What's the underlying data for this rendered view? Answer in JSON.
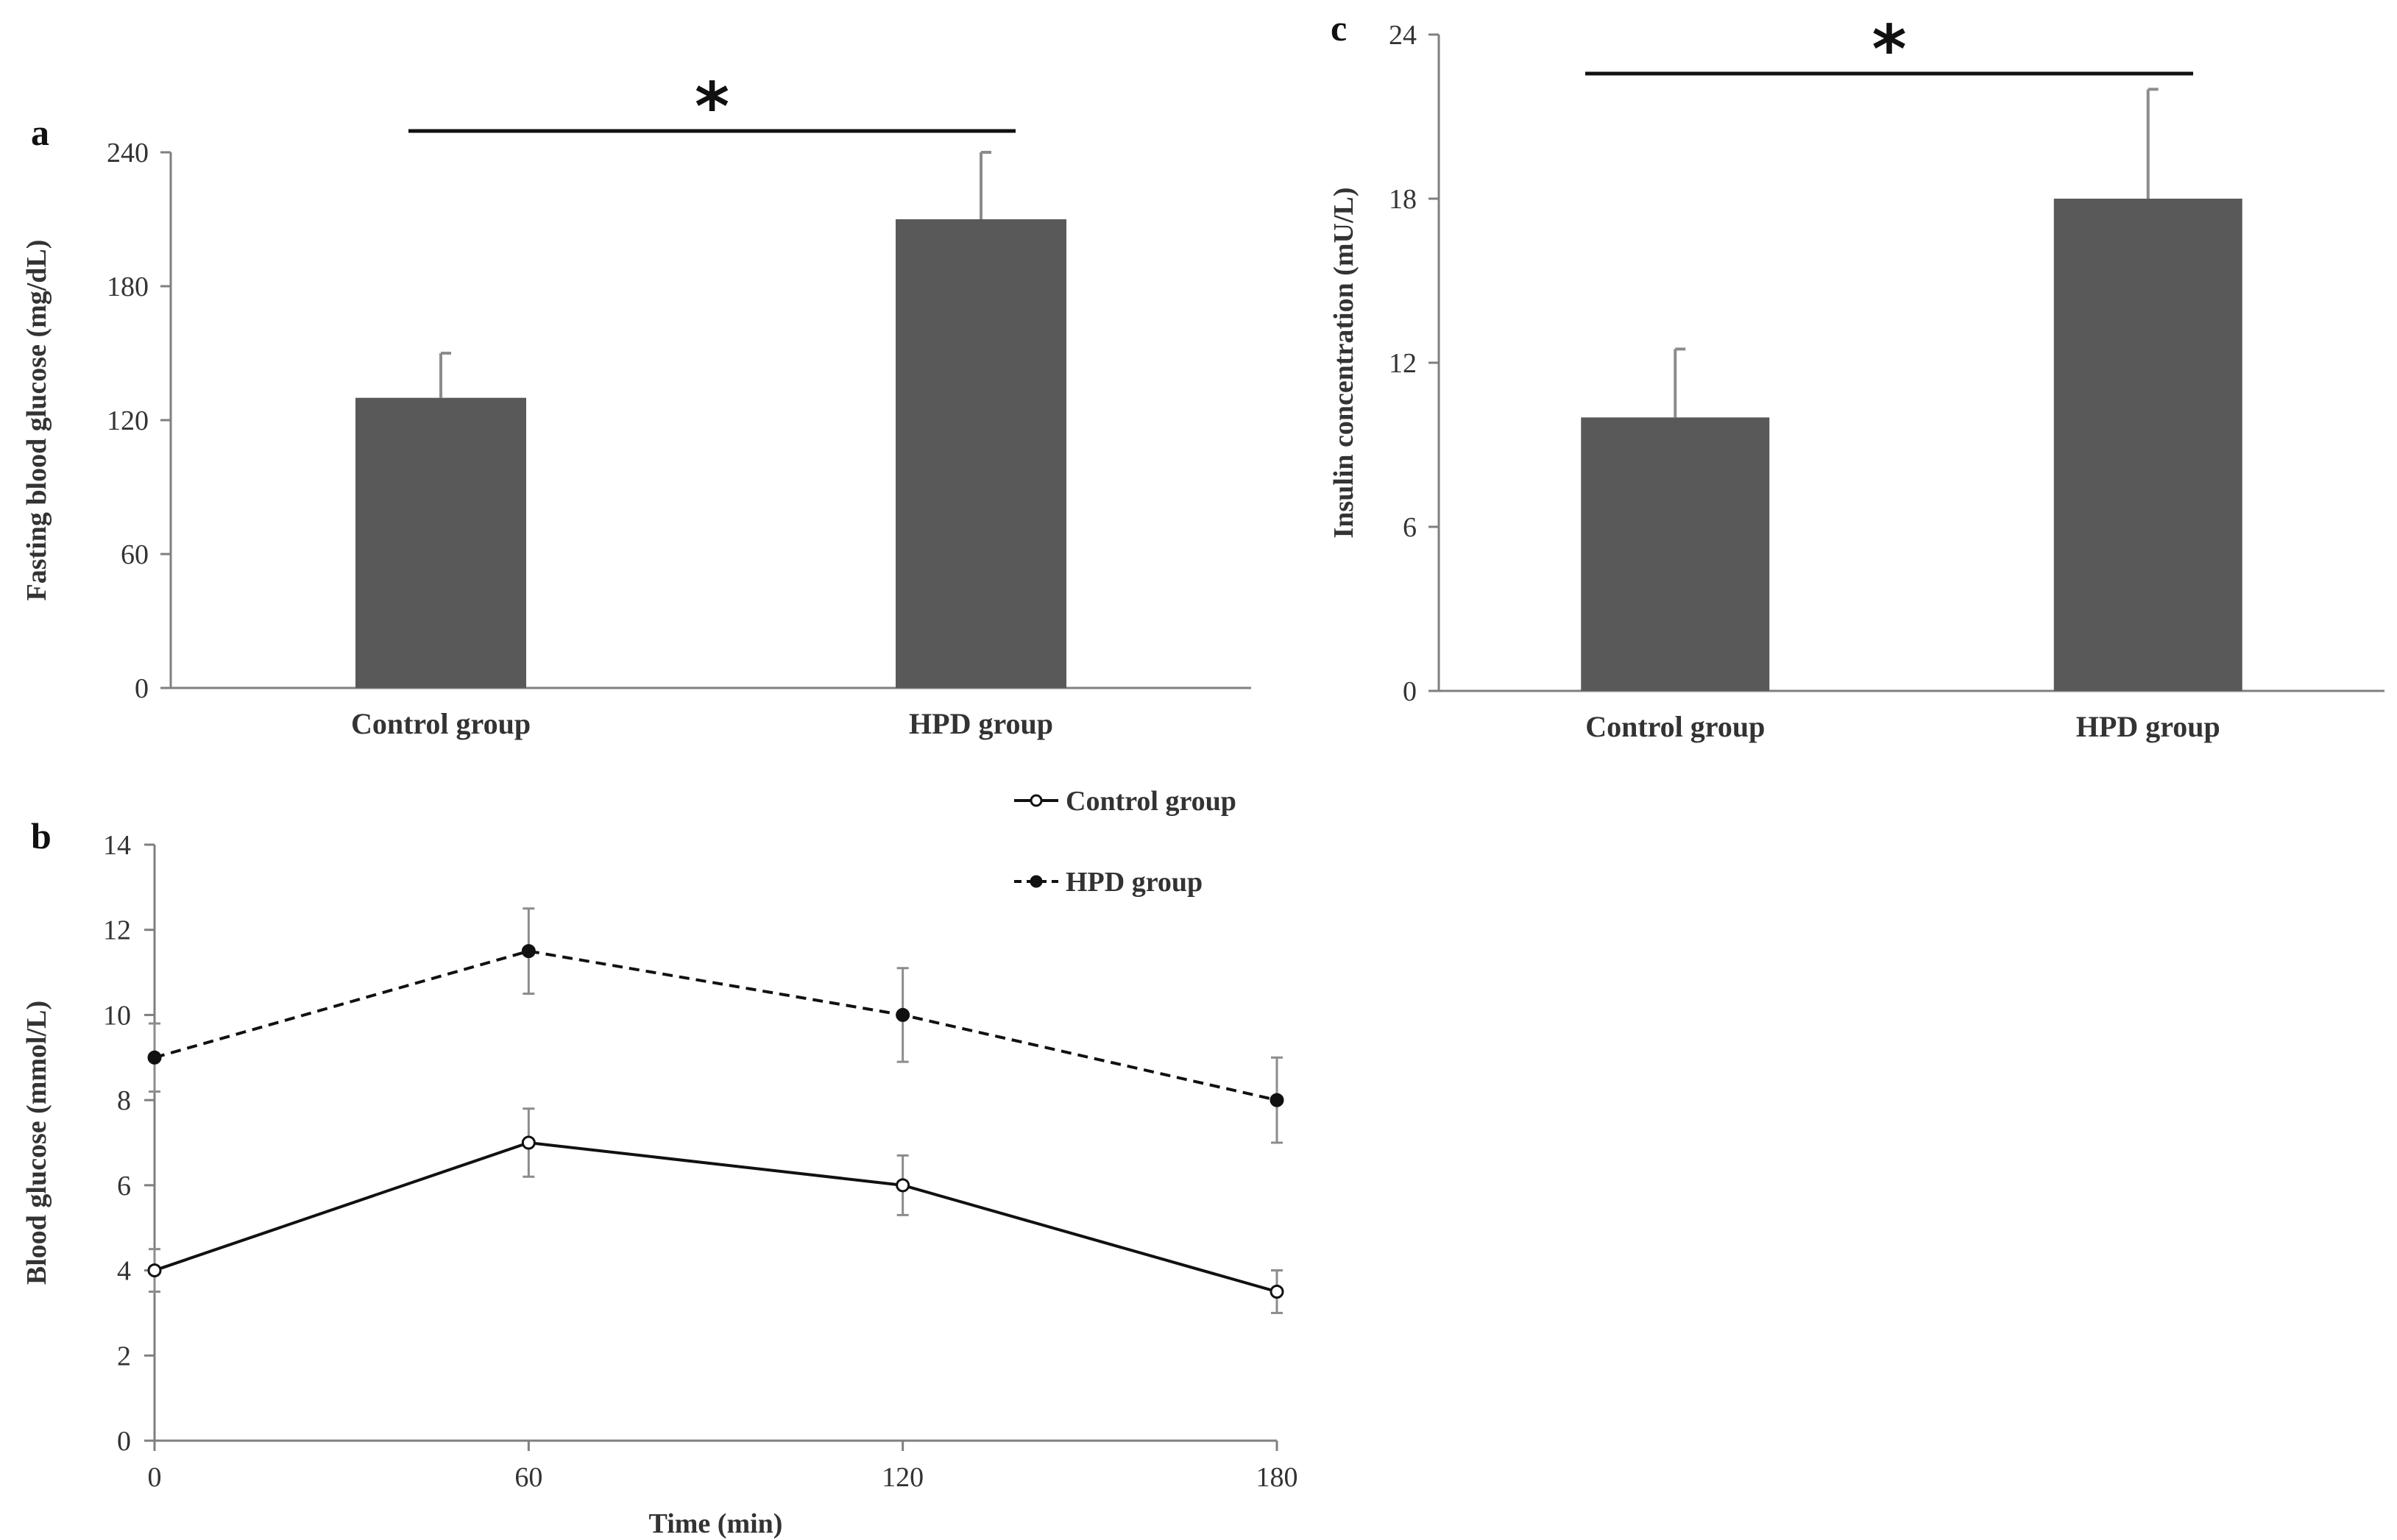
{
  "chart_data": [
    {
      "panel": "a",
      "type": "bar",
      "categories": [
        "Control group",
        "HPD group"
      ],
      "values": [
        130,
        210
      ],
      "errors": [
        20,
        30
      ],
      "ylabel": "Fasting blood glucose (mg/dL)",
      "xlabel": "",
      "ylim": [
        0,
        240
      ],
      "yticks": [
        0,
        60,
        120,
        180,
        240
      ],
      "significance": "*",
      "bar_color": "#595959"
    },
    {
      "panel": "b",
      "type": "line",
      "x": [
        0,
        60,
        120,
        180
      ],
      "xticks": [
        0,
        60,
        120,
        180
      ],
      "series": [
        {
          "name": "Control group",
          "values": [
            4,
            7,
            6,
            3.5
          ],
          "errors": [
            0.5,
            0.8,
            0.7,
            0.5
          ],
          "style": "solid",
          "marker": "open-circle"
        },
        {
          "name": "HPD group",
          "values": [
            9,
            11.5,
            10,
            8
          ],
          "errors": [
            0.8,
            1.0,
            1.1,
            1.0
          ],
          "style": "dashed",
          "marker": "filled-circle"
        }
      ],
      "ylabel": "Blood glucose (mmol/L)",
      "xlabel": "Time (min)",
      "ylim": [
        0,
        14
      ],
      "yticks": [
        0,
        2,
        4,
        6,
        8,
        10,
        12,
        14
      ],
      "legend": "top-right"
    },
    {
      "panel": "c",
      "type": "bar",
      "categories": [
        "Control group",
        "HPD group"
      ],
      "values": [
        10,
        18
      ],
      "errors": [
        2.5,
        4
      ],
      "ylabel": "Insulin concentration (mU/L)",
      "xlabel": "",
      "ylim": [
        0,
        24
      ],
      "yticks": [
        0,
        6,
        12,
        18,
        24
      ],
      "significance": "*",
      "bar_color": "#595959"
    }
  ]
}
